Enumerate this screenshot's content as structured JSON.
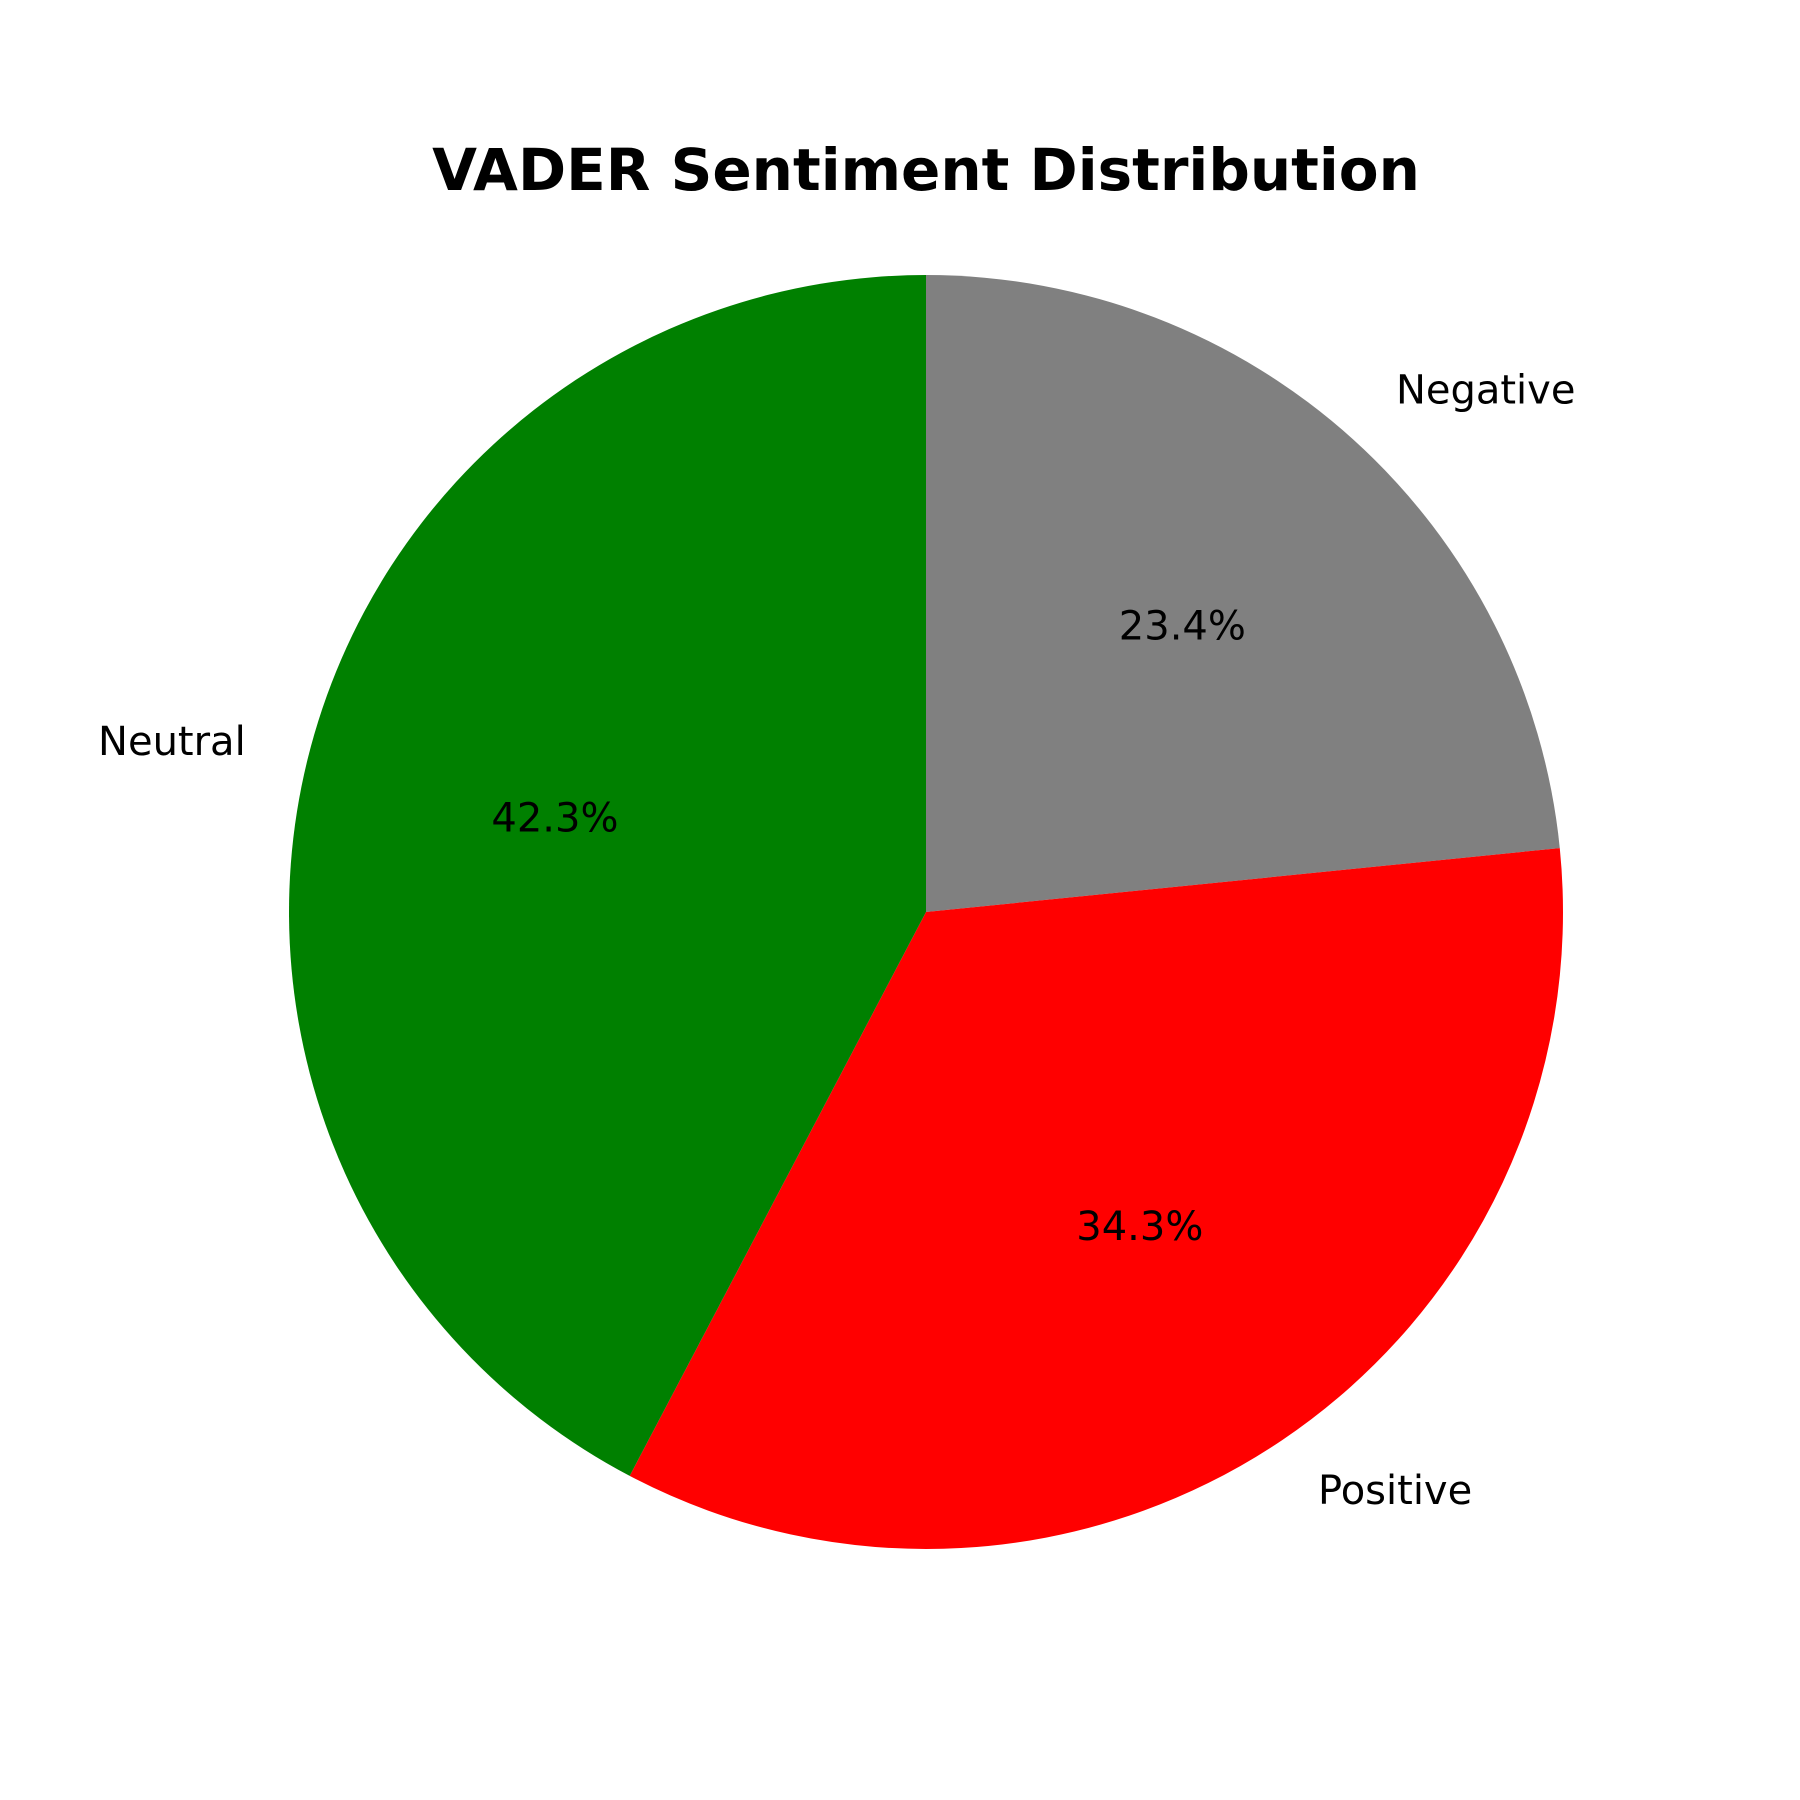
{
  "chart_data": {
    "type": "pie",
    "title": "VADER Sentiment Distribution",
    "slices": [
      {
        "label": "Negative",
        "value": 23.4,
        "pct_label": "23.4%",
        "color": "#808080"
      },
      {
        "label": "Positive",
        "value": 34.3,
        "pct_label": "34.3%",
        "color": "#ff0000"
      },
      {
        "label": "Neutral",
        "value": 42.3,
        "pct_label": "42.3%",
        "color": "#008000"
      }
    ],
    "start_angle_deg": 90,
    "direction": "clockwise",
    "legend": "none"
  }
}
